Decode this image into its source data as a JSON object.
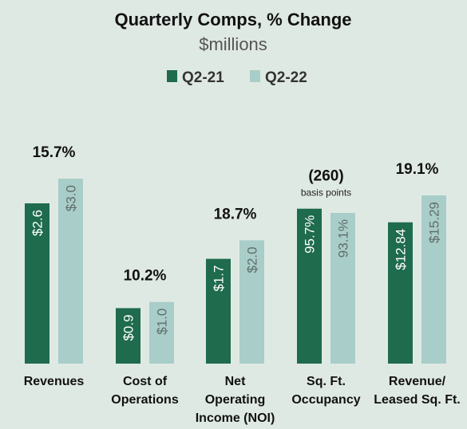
{
  "chart_data": {
    "type": "bar",
    "title": "Quarterly Comps, % Change",
    "subtitle": "$millions",
    "legend_placement": "top-center",
    "series": [
      {
        "name": "Q2-21",
        "color": "#1e6b4e",
        "labels": [
          "$2.6",
          "$0.9",
          "$1.7",
          "95.7%",
          "$12.84"
        ]
      },
      {
        "name": "Q2-22",
        "color": "#a9cdc8",
        "labels": [
          "$3.0",
          "$1.0",
          "$2.0",
          "93.1%",
          "$15.29"
        ]
      }
    ],
    "groups": [
      {
        "category_lines": [
          "Revenues"
        ],
        "change": "15.7%",
        "note": "",
        "values": [
          2.6,
          3.0
        ]
      },
      {
        "category_lines": [
          "Cost of",
          "Operations"
        ],
        "change": "10.2%",
        "note": "",
        "values": [
          0.9,
          1.0
        ]
      },
      {
        "category_lines": [
          "Net",
          "Operating",
          "Income (NOI)"
        ],
        "change": "18.7%",
        "note": "",
        "values": [
          1.7,
          2.0
        ]
      },
      {
        "category_lines": [
          "Sq. Ft.",
          "Occupancy"
        ],
        "change": "(260)",
        "note": "basis points",
        "values": [
          95.7,
          93.1
        ]
      },
      {
        "category_lines": [
          "Revenue/",
          "Leased Sq. Ft."
        ],
        "change": "19.1%",
        "note": "",
        "values": [
          12.84,
          15.29
        ]
      }
    ]
  }
}
